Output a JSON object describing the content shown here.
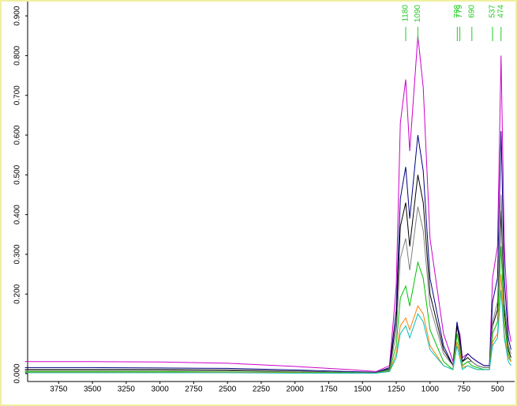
{
  "chart_data": {
    "type": "line",
    "x": [
      4000,
      3500,
      3000,
      2500,
      2000,
      1600,
      1400,
      1300,
      1250,
      1220,
      1180,
      1150,
      1090,
      1050,
      1000,
      900,
      830,
      800,
      779,
      760,
      720,
      690,
      650,
      600,
      560,
      537,
      500,
      474,
      450,
      420,
      400
    ],
    "series": [
      {
        "color": "#cc00cc",
        "values": [
          0.03,
          0.03,
          0.029,
          0.026,
          0.018,
          0.01,
          0.005,
          0.02,
          0.22,
          0.63,
          0.74,
          0.56,
          0.85,
          0.72,
          0.34,
          0.1,
          0.03,
          0.12,
          0.1,
          0.04,
          0.05,
          0.04,
          0.03,
          0.02,
          0.02,
          0.24,
          0.32,
          0.8,
          0.32,
          0.12,
          0.08
        ]
      },
      {
        "color": "#000080",
        "values": [
          0.015,
          0.015,
          0.014,
          0.013,
          0.009,
          0.005,
          0.003,
          0.015,
          0.16,
          0.44,
          0.52,
          0.39,
          0.6,
          0.51,
          0.24,
          0.07,
          0.02,
          0.13,
          0.09,
          0.03,
          0.05,
          0.04,
          0.03,
          0.02,
          0.02,
          0.18,
          0.24,
          0.61,
          0.24,
          0.09,
          0.06
        ]
      },
      {
        "color": "#000000",
        "values": [
          0.01,
          0.01,
          0.01,
          0.009,
          0.006,
          0.003,
          0.002,
          0.012,
          0.13,
          0.37,
          0.43,
          0.32,
          0.5,
          0.43,
          0.2,
          0.06,
          0.02,
          0.12,
          0.08,
          0.03,
          0.04,
          0.03,
          0.02,
          0.015,
          0.015,
          0.12,
          0.16,
          0.41,
          0.16,
          0.06,
          0.04
        ]
      },
      {
        "color": "#808080",
        "values": [
          0.008,
          0.008,
          0.008,
          0.007,
          0.005,
          0.003,
          0.002,
          0.01,
          0.1,
          0.29,
          0.34,
          0.26,
          0.42,
          0.36,
          0.17,
          0.05,
          0.02,
          0.1,
          0.07,
          0.02,
          0.03,
          0.03,
          0.02,
          0.015,
          0.015,
          0.13,
          0.18,
          0.45,
          0.18,
          0.07,
          0.05
        ]
      },
      {
        "color": "#00c000",
        "values": [
          0.005,
          0.005,
          0.005,
          0.004,
          0.003,
          0.002,
          0.001,
          0.008,
          0.07,
          0.19,
          0.22,
          0.17,
          0.28,
          0.24,
          0.11,
          0.03,
          0.01,
          0.1,
          0.06,
          0.02,
          0.03,
          0.02,
          0.015,
          0.01,
          0.01,
          0.1,
          0.13,
          0.32,
          0.13,
          0.05,
          0.03
        ]
      },
      {
        "color": "#ff8000",
        "values": [
          0.003,
          0.003,
          0.003,
          0.003,
          0.002,
          0.001,
          0.001,
          0.006,
          0.05,
          0.12,
          0.14,
          0.11,
          0.17,
          0.15,
          0.07,
          0.02,
          0.01,
          0.08,
          0.05,
          0.015,
          0.02,
          0.015,
          0.01,
          0.01,
          0.01,
          0.08,
          0.1,
          0.25,
          0.1,
          0.04,
          0.03
        ]
      },
      {
        "color": "#00c0c0",
        "values": [
          0.002,
          0.002,
          0.002,
          0.002,
          0.001,
          0.001,
          0.001,
          0.005,
          0.04,
          0.1,
          0.12,
          0.09,
          0.15,
          0.13,
          0.06,
          0.02,
          0.01,
          0.07,
          0.04,
          0.01,
          0.02,
          0.015,
          0.01,
          0.01,
          0.01,
          0.07,
          0.09,
          0.21,
          0.09,
          0.03,
          0.02
        ]
      }
    ],
    "xlim": [
      3980,
      385
    ],
    "xticks": [
      3750,
      3500,
      3250,
      3000,
      2750,
      2500,
      2250,
      2000,
      1750,
      1500,
      1250,
      1000,
      750,
      500
    ],
    "ylim": [
      -0.02,
      0.93
    ],
    "yticks": [
      {
        "value": 0,
        "label": "0.000"
      },
      {
        "value": 0.2,
        "label": "0.200"
      },
      {
        "value": 0.3,
        "label": "0.300"
      },
      {
        "value": 0.4,
        "label": "0.400"
      },
      {
        "value": 0.5,
        "label": "0.500"
      },
      {
        "value": 0.6,
        "label": "0.600"
      },
      {
        "value": 0.7,
        "label": "0.700"
      },
      {
        "value": 0.8,
        "label": "0.800"
      },
      {
        "value": 0.9,
        "label": "0.900"
      }
    ],
    "peak_labels": [
      1180,
      1090,
      798,
      779,
      690,
      537,
      474
    ],
    "peak_label_color": "#22cc22"
  }
}
